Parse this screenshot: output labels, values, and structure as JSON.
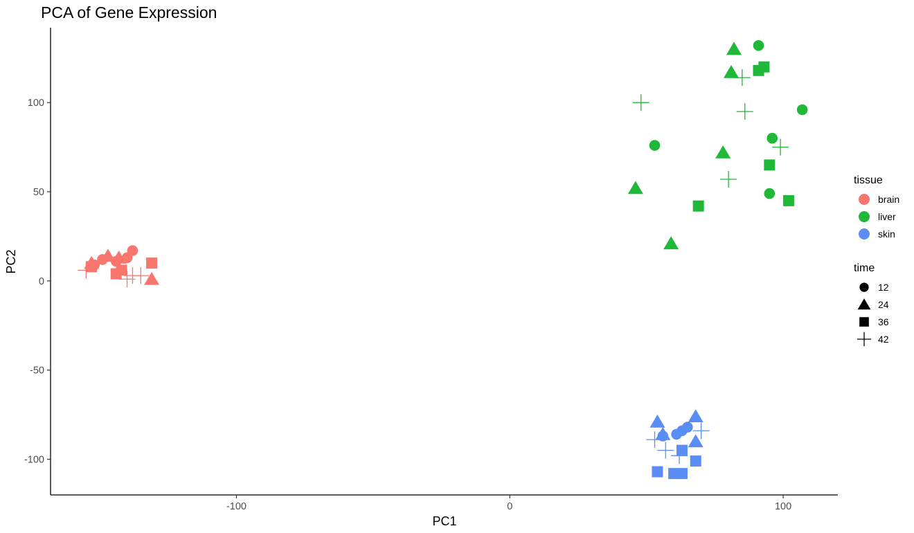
{
  "chart_data": {
    "type": "scatter",
    "title": "PCA of Gene Expression",
    "xlabel": "PC1",
    "ylabel": "PC2",
    "xlim": [
      -168,
      120
    ],
    "ylim": [
      -120,
      142
    ],
    "x_ticks": [
      -100,
      0,
      100
    ],
    "y_ticks": [
      -100,
      -50,
      0,
      50,
      100
    ],
    "x_tick_labels": [
      "-100",
      "0",
      "100"
    ],
    "y_tick_labels": [
      "-100",
      "-50",
      "0",
      "50",
      "100"
    ],
    "grid": false,
    "legend_position": "right",
    "colors": {
      "brain": "#F8766D",
      "liver": "#1FB838",
      "skin": "#5B8EF5"
    },
    "legends": [
      {
        "title": "tissue",
        "type": "color",
        "entries": [
          "brain",
          "liver",
          "skin"
        ]
      },
      {
        "title": "time",
        "type": "shape",
        "entries": [
          "12",
          "24",
          "36",
          "42"
        ]
      }
    ],
    "shape_map": {
      "12": "circle",
      "24": "triangle",
      "36": "square",
      "42": "plus"
    },
    "points": [
      {
        "x": -138,
        "y": 17,
        "tissue": "brain",
        "time": "12"
      },
      {
        "x": -140,
        "y": 13,
        "tissue": "brain",
        "time": "12"
      },
      {
        "x": -149,
        "y": 12,
        "tissue": "brain",
        "time": "12"
      },
      {
        "x": -152,
        "y": 9,
        "tissue": "brain",
        "time": "12"
      },
      {
        "x": -144,
        "y": 11,
        "tissue": "brain",
        "time": "12"
      },
      {
        "x": -147,
        "y": 14,
        "tissue": "brain",
        "time": "24"
      },
      {
        "x": -143,
        "y": 13,
        "tissue": "brain",
        "time": "24"
      },
      {
        "x": -153,
        "y": 10,
        "tissue": "brain",
        "time": "24"
      },
      {
        "x": -131,
        "y": 1,
        "tissue": "brain",
        "time": "24"
      },
      {
        "x": -131,
        "y": 10,
        "tissue": "brain",
        "time": "36"
      },
      {
        "x": -153,
        "y": 8,
        "tissue": "brain",
        "time": "36"
      },
      {
        "x": -142,
        "y": 6,
        "tissue": "brain",
        "time": "36"
      },
      {
        "x": -144,
        "y": 4,
        "tissue": "brain",
        "time": "36"
      },
      {
        "x": -155,
        "y": 6,
        "tissue": "brain",
        "time": "42"
      },
      {
        "x": -138,
        "y": 3,
        "tissue": "brain",
        "time": "42"
      },
      {
        "x": -135,
        "y": 3,
        "tissue": "brain",
        "time": "42"
      },
      {
        "x": -140,
        "y": 1,
        "tissue": "brain",
        "time": "42"
      },
      {
        "x": 91,
        "y": 132,
        "tissue": "liver",
        "time": "12"
      },
      {
        "x": 107,
        "y": 96,
        "tissue": "liver",
        "time": "12"
      },
      {
        "x": 96,
        "y": 80,
        "tissue": "liver",
        "time": "12"
      },
      {
        "x": 53,
        "y": 76,
        "tissue": "liver",
        "time": "12"
      },
      {
        "x": 95,
        "y": 49,
        "tissue": "liver",
        "time": "12"
      },
      {
        "x": 82,
        "y": 130,
        "tissue": "liver",
        "time": "24"
      },
      {
        "x": 81,
        "y": 117,
        "tissue": "liver",
        "time": "24"
      },
      {
        "x": 78,
        "y": 72,
        "tissue": "liver",
        "time": "24"
      },
      {
        "x": 46,
        "y": 52,
        "tissue": "liver",
        "time": "24"
      },
      {
        "x": 59,
        "y": 21,
        "tissue": "liver",
        "time": "24"
      },
      {
        "x": 93,
        "y": 120,
        "tissue": "liver",
        "time": "36"
      },
      {
        "x": 91,
        "y": 118,
        "tissue": "liver",
        "time": "36"
      },
      {
        "x": 95,
        "y": 65,
        "tissue": "liver",
        "time": "36"
      },
      {
        "x": 69,
        "y": 42,
        "tissue": "liver",
        "time": "36"
      },
      {
        "x": 102,
        "y": 45,
        "tissue": "liver",
        "time": "36"
      },
      {
        "x": 48,
        "y": 100,
        "tissue": "liver",
        "time": "42"
      },
      {
        "x": 85,
        "y": 114,
        "tissue": "liver",
        "time": "42"
      },
      {
        "x": 86,
        "y": 95,
        "tissue": "liver",
        "time": "42"
      },
      {
        "x": 99,
        "y": 75,
        "tissue": "liver",
        "time": "42"
      },
      {
        "x": 80,
        "y": 57,
        "tissue": "liver",
        "time": "42"
      },
      {
        "x": 56,
        "y": -87,
        "tissue": "skin",
        "time": "12"
      },
      {
        "x": 63,
        "y": -84,
        "tissue": "skin",
        "time": "12"
      },
      {
        "x": 65,
        "y": -82,
        "tissue": "skin",
        "time": "12"
      },
      {
        "x": 61,
        "y": -86,
        "tissue": "skin",
        "time": "12"
      },
      {
        "x": 54,
        "y": -79,
        "tissue": "skin",
        "time": "24"
      },
      {
        "x": 56,
        "y": -86,
        "tissue": "skin",
        "time": "24"
      },
      {
        "x": 68,
        "y": -76,
        "tissue": "skin",
        "time": "24"
      },
      {
        "x": 68,
        "y": -90,
        "tissue": "skin",
        "time": "24"
      },
      {
        "x": 63,
        "y": -95,
        "tissue": "skin",
        "time": "36"
      },
      {
        "x": 68,
        "y": -101,
        "tissue": "skin",
        "time": "36"
      },
      {
        "x": 54,
        "y": -107,
        "tissue": "skin",
        "time": "36"
      },
      {
        "x": 60,
        "y": -108,
        "tissue": "skin",
        "time": "36"
      },
      {
        "x": 63,
        "y": -108,
        "tissue": "skin",
        "time": "36"
      },
      {
        "x": 53,
        "y": -89,
        "tissue": "skin",
        "time": "42"
      },
      {
        "x": 57,
        "y": -95,
        "tissue": "skin",
        "time": "42"
      },
      {
        "x": 62,
        "y": -98,
        "tissue": "skin",
        "time": "42"
      },
      {
        "x": 70,
        "y": -84,
        "tissue": "skin",
        "time": "42"
      }
    ]
  }
}
